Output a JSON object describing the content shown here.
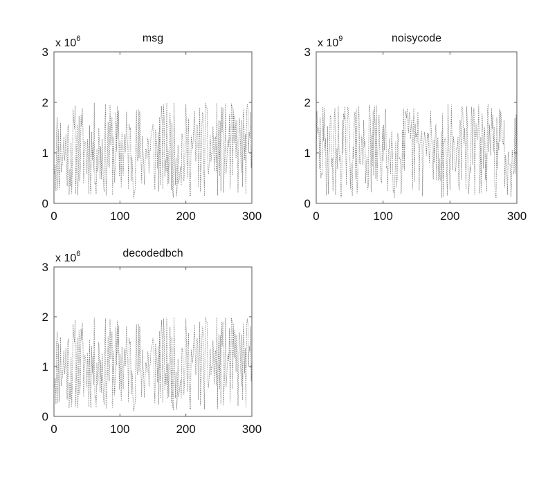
{
  "chart_data": [
    {
      "type": "line",
      "title": "msg",
      "y_multiplier": {
        "base": "x 10",
        "exponent": "6"
      },
      "xlim": [
        0,
        300
      ],
      "ylim": [
        0,
        3
      ],
      "xticks": [
        "0",
        "100",
        "200",
        "300"
      ],
      "yticks": [
        "0",
        "1",
        "2",
        "3"
      ],
      "grid": false,
      "seed": 11,
      "n_points": 300
    },
    {
      "type": "line",
      "title": "noisycode",
      "y_multiplier": {
        "base": "x 10",
        "exponent": "9"
      },
      "xlim": [
        0,
        300
      ],
      "ylim": [
        0,
        3
      ],
      "xticks": [
        "0",
        "100",
        "200",
        "300"
      ],
      "yticks": [
        "0",
        "1",
        "2",
        "3"
      ],
      "grid": false,
      "seed": 29,
      "n_points": 300
    },
    {
      "type": "line",
      "title": "decodedbch",
      "y_multiplier": {
        "base": "x 10",
        "exponent": "6"
      },
      "xlim": [
        0,
        300
      ],
      "ylim": [
        0,
        3
      ],
      "xticks": [
        "0",
        "100",
        "200",
        "300"
      ],
      "yticks": [
        "0",
        "1",
        "2",
        "3"
      ],
      "grid": false,
      "seed": 11,
      "n_points": 300
    }
  ]
}
